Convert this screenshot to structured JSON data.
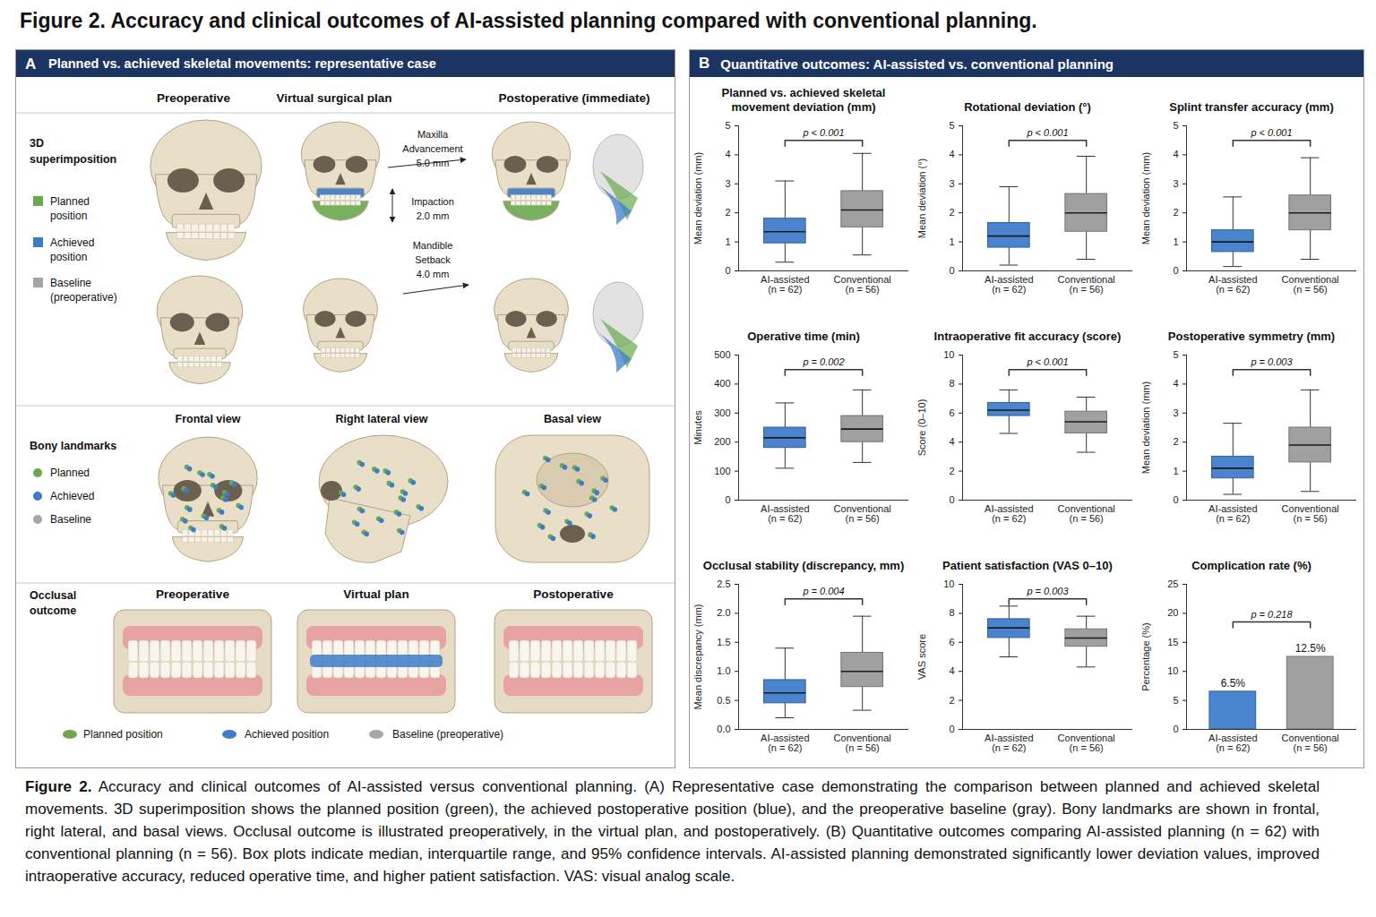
{
  "title": "Figure 2. Accuracy and clinical outcomes of AI-assisted planning compared with conventional planning.",
  "caption": {
    "label": "Figure 2.",
    "text": "Accuracy and clinical outcomes of AI-assisted versus conventional planning. (A) Representative case demonstrating the comparison between planned and achieved skeletal movements. 3D superimposition shows the planned position (green), the achieved postoperative position (blue), and the preoperative baseline (gray). Bony landmarks are shown in frontal, right lateral, and basal views. Occlusal outcome is illustrated preoperatively, in the virtual plan, and postoperatively. (B) Quantitative outcomes comparing AI-assisted planning (n = 62) with conventional planning (n = 56). Box plots indicate median, interquartile range, and 95% confidence intervals. AI-assisted planning demonstrated significantly lower deviation values, improved intraoperative accuracy, reduced operative time, and higher patient satisfaction. VAS: visual analog scale."
  },
  "panel_a": {
    "label": "A",
    "title": "Planned vs. achieved skeletal movements: representative case",
    "column_headers": [
      "Preoperative",
      "Virtual surgical plan",
      "Postoperative (immediate)"
    ],
    "superimposition": {
      "label": [
        "3D",
        "superimposition"
      ],
      "legend": [
        {
          "text": [
            "Planned",
            "position"
          ],
          "color": "#6aa84f"
        },
        {
          "text": [
            "Achieved",
            "position"
          ],
          "color": "#3d7cc9"
        },
        {
          "text": [
            "Baseline",
            "(preoperative)"
          ],
          "color": "#a6a6a6"
        }
      ],
      "movements": [
        {
          "text": [
            "Maxilla",
            "Advancement",
            "5.0 mm"
          ]
        },
        {
          "text": [
            "Impaction",
            "2.0 mm"
          ]
        },
        {
          "text": [
            "Mandible",
            "Setback",
            "4.0 mm"
          ]
        }
      ]
    },
    "bony_landmarks": {
      "label": "Bony landmarks",
      "views": [
        "Frontal view",
        "Right lateral view",
        "Basal view"
      ],
      "legend": [
        {
          "text": "Planned",
          "color": "#6aa84f"
        },
        {
          "text": "Achieved",
          "color": "#3d7cc9"
        },
        {
          "text": "Baseline",
          "color": "#a6a6a6"
        }
      ]
    },
    "occlusal": {
      "label": [
        "Occlusal",
        "outcome"
      ],
      "stages": [
        "Preoperative",
        "Virtual plan",
        "Postoperative"
      ],
      "legend": [
        {
          "text": "Planned position",
          "color": "#6aa84f"
        },
        {
          "text": "Achieved position",
          "color": "#3d7cc9"
        },
        {
          "text": "Baseline (preoperative)",
          "color": "#a6a6a6"
        }
      ]
    }
  },
  "panel_b": {
    "label": "B",
    "title": "Quantitative outcomes: AI-assisted vs. conventional planning"
  },
  "chart_data": [
    {
      "type": "box",
      "title": "Planned vs. achieved skeletal movement deviation (mm)",
      "y_label": "Mean deviation (mm)",
      "categories": [
        "AI-assisted",
        "Conventional"
      ],
      "category_sublabels": [
        "(n = 62)",
        "(n = 56)"
      ],
      "colors": [
        "#4a84cf",
        "#a0a0a0"
      ],
      "whisker_low": [
        0.3,
        0.55
      ],
      "q1": [
        0.95,
        1.5
      ],
      "median": [
        1.35,
        2.1
      ],
      "q3": [
        1.8,
        2.75
      ],
      "whisker_high": [
        3.1,
        4.05
      ],
      "ylim": [
        0,
        5
      ],
      "yticks": [
        0,
        1,
        2,
        3,
        4,
        5
      ],
      "annotation": "p < 0.001"
    },
    {
      "type": "box",
      "title": "Rotational deviation (°)",
      "y_label": "Mean deviation (°)",
      "categories": [
        "AI-assisted",
        "Conventional"
      ],
      "category_sublabels": [
        "(n = 62)",
        "(n = 56)"
      ],
      "colors": [
        "#4a84cf",
        "#a0a0a0"
      ],
      "whisker_low": [
        0.2,
        0.4
      ],
      "q1": [
        0.8,
        1.35
      ],
      "median": [
        1.2,
        2.0
      ],
      "q3": [
        1.65,
        2.65
      ],
      "whisker_high": [
        2.9,
        3.95
      ],
      "ylim": [
        0,
        5
      ],
      "yticks": [
        0,
        1,
        2,
        3,
        4,
        5
      ],
      "annotation": "p < 0.001"
    },
    {
      "type": "box",
      "title": "Splint transfer accuracy (mm)",
      "y_label": "Mean deviation (mm)",
      "categories": [
        "AI-assisted",
        "Conventional"
      ],
      "category_sublabels": [
        "(n = 62)",
        "(n = 56)"
      ],
      "colors": [
        "#4a84cf",
        "#a0a0a0"
      ],
      "whisker_low": [
        0.15,
        0.4
      ],
      "q1": [
        0.65,
        1.4
      ],
      "median": [
        1.0,
        2.0
      ],
      "q3": [
        1.4,
        2.6
      ],
      "whisker_high": [
        2.55,
        3.9
      ],
      "ylim": [
        0,
        5
      ],
      "yticks": [
        0,
        1,
        2,
        3,
        4,
        5
      ],
      "annotation": "p < 0.001"
    },
    {
      "type": "box",
      "title": "Operative time (min)",
      "y_label": "Minutes",
      "categories": [
        "AI-assisted",
        "Conventional"
      ],
      "category_sublabels": [
        "(n = 62)",
        "(n = 56)"
      ],
      "colors": [
        "#4a84cf",
        "#a0a0a0"
      ],
      "whisker_low": [
        110,
        130
      ],
      "q1": [
        180,
        200
      ],
      "median": [
        215,
        245
      ],
      "q3": [
        250,
        290
      ],
      "whisker_high": [
        335,
        380
      ],
      "ylim": [
        0,
        500
      ],
      "yticks": [
        0,
        100,
        200,
        300,
        400,
        500
      ],
      "annotation": "p = 0.002"
    },
    {
      "type": "box",
      "title": "Intraoperative fit accuracy (score)",
      "y_label": "Score (0–10)",
      "categories": [
        "AI-assisted",
        "Conventional"
      ],
      "category_sublabels": [
        "(n = 62)",
        "(n = 56)"
      ],
      "colors": [
        "#4a84cf",
        "#a0a0a0"
      ],
      "whisker_low": [
        4.6,
        3.3
      ],
      "q1": [
        5.8,
        4.6
      ],
      "median": [
        6.2,
        5.4
      ],
      "q3": [
        6.7,
        6.1
      ],
      "whisker_high": [
        7.6,
        7.1
      ],
      "ylim": [
        0,
        10
      ],
      "yticks": [
        0,
        2,
        4,
        6,
        8,
        10
      ],
      "annotation": "p < 0.001"
    },
    {
      "type": "box",
      "title": "Postoperative symmetry (mm)",
      "y_label": "Mean deviation (mm)",
      "categories": [
        "AI-assisted",
        "Conventional"
      ],
      "category_sublabels": [
        "(n = 62)",
        "(n = 56)"
      ],
      "colors": [
        "#4a84cf",
        "#a0a0a0"
      ],
      "whisker_low": [
        0.2,
        0.3
      ],
      "q1": [
        0.75,
        1.3
      ],
      "median": [
        1.1,
        1.9
      ],
      "q3": [
        1.5,
        2.5
      ],
      "whisker_high": [
        2.65,
        3.8
      ],
      "ylim": [
        0,
        5
      ],
      "yticks": [
        0,
        1,
        2,
        3,
        4,
        5
      ],
      "annotation": "p = 0.003"
    },
    {
      "type": "box",
      "title": "Occlusal stability (discrepancy, mm)",
      "y_label": "Mean discrepancy (mm)",
      "categories": [
        "AI-assisted",
        "Conventional"
      ],
      "category_sublabels": [
        "(n = 62)",
        "(n = 56)"
      ],
      "colors": [
        "#4a84cf",
        "#a0a0a0"
      ],
      "whisker_low": [
        0.2,
        0.33
      ],
      "q1": [
        0.45,
        0.73
      ],
      "median": [
        0.63,
        1.0
      ],
      "q3": [
        0.85,
        1.32
      ],
      "whisker_high": [
        1.4,
        1.95
      ],
      "ylim": [
        0,
        2.5
      ],
      "yticks": [
        {
          "value": 0,
          "label": "0.0"
        },
        0.5,
        {
          "value": 1,
          "label": "1.0"
        },
        1.5,
        {
          "value": 2,
          "label": "2.0"
        },
        2.5
      ],
      "annotation": "p = 0.004"
    },
    {
      "type": "box",
      "title": "Patient satisfaction (VAS 0–10)",
      "y_label": "VAS score",
      "categories": [
        "AI-assisted",
        "Conventional"
      ],
      "category_sublabels": [
        "(n = 62)",
        "(n = 56)"
      ],
      "colors": [
        "#4a84cf",
        "#a0a0a0"
      ],
      "whisker_low": [
        5.0,
        4.3
      ],
      "q1": [
        6.3,
        5.7
      ],
      "median": [
        7.0,
        6.3
      ],
      "q3": [
        7.6,
        6.9
      ],
      "whisker_high": [
        8.5,
        7.8
      ],
      "ylim": [
        0,
        10
      ],
      "yticks": [
        0,
        2,
        4,
        6,
        8,
        10
      ],
      "annotation": "p = 0.003"
    },
    {
      "type": "bar",
      "title": "Complication rate (%)",
      "y_label": "Percentage (%)",
      "categories": [
        "AI-assisted",
        "Conventional"
      ],
      "category_sublabels": [
        "(n = 62)",
        "(n = 56)"
      ],
      "colors": [
        "#4a84cf",
        "#a0a0a0"
      ],
      "values": [
        6.5,
        12.5
      ],
      "value_labels": [
        "6.5%",
        "12.5%"
      ],
      "data_labels": true,
      "ylim": [
        0,
        25
      ],
      "yticks": [
        0,
        5,
        10,
        15,
        20,
        25
      ],
      "annotation": "p = 0.218"
    }
  ]
}
